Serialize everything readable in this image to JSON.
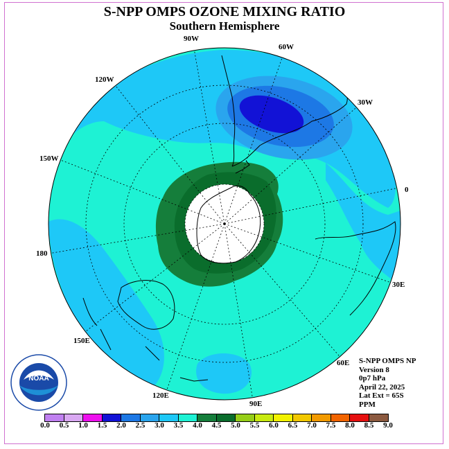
{
  "title": "S-NPP OMPS OZONE MIXING RATIO",
  "subtitle": "Southern Hemisphere",
  "longitude_labels": {
    "w90": "90W",
    "w60": "60W",
    "w30": "30W",
    "e0": "0",
    "e30": "30E",
    "e60": "60E",
    "e90": "90E",
    "e120": "120E",
    "e150": "150E",
    "e180": "180",
    "w150": "150W",
    "w120": "120W"
  },
  "info": {
    "instrument": "S-NPP OMPS NP",
    "version": "Version 8",
    "level": "0p7 hPa",
    "date": "April 22, 2025",
    "lat_ext": "Lat Ext = 65S",
    "units": "PPM"
  },
  "colors": {
    "ocean_cyan": "#1ef2d4",
    "light_blue": "#1ec8f7",
    "mid_blue": "#2aa5ee",
    "blue": "#1d78e5",
    "deep_blue": "#1212d6",
    "dark_green": "#0a6d2c",
    "green": "#157e3b",
    "frame": "#d070d0"
  },
  "colorbar": {
    "colors": [
      "#c080f0",
      "#d9a8f2",
      "#ee10ee",
      "#1212d6",
      "#1d78e5",
      "#2aa5ee",
      "#1ec8f7",
      "#1ef2d4",
      "#157e3b",
      "#0a6d2c",
      "#96ce18",
      "#c8ea10",
      "#f2f200",
      "#f2c800",
      "#f29a00",
      "#f26400",
      "#e61010",
      "#8c5a40"
    ],
    "ticks": [
      "0.0",
      "0.5",
      "1.0",
      "1.5",
      "2.0",
      "2.5",
      "3.0",
      "3.5",
      "4.0",
      "4.5",
      "5.0",
      "5.5",
      "6.0",
      "6.5",
      "7.0",
      "7.5",
      "8.0",
      "8.5",
      "9.0"
    ]
  },
  "logo": {
    "text": "NOAA"
  }
}
